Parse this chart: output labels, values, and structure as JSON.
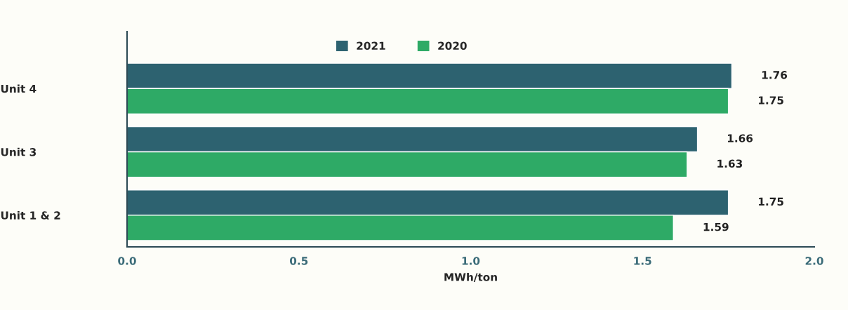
{
  "chart_data": {
    "type": "bar",
    "orientation": "horizontal",
    "categories": [
      "Unit 4",
      "Unit 3",
      "Unit 1 & 2"
    ],
    "series": [
      {
        "name": "2021",
        "color": "#2d6270",
        "values": [
          1.76,
          1.66,
          1.75
        ]
      },
      {
        "name": "2020",
        "color": "#2eaa66",
        "values": [
          1.75,
          1.63,
          1.59
        ]
      }
    ],
    "xlabel": "MWh/ton",
    "xlim": [
      0,
      2.0
    ],
    "xticks": [
      {
        "value": 0,
        "label": "0.0"
      },
      {
        "value": 0.5,
        "label": "0.5"
      },
      {
        "value": 1.0,
        "label": "1.0"
      },
      {
        "value": 1.5,
        "label": "1.5"
      },
      {
        "value": 2.0,
        "label": "2.0"
      }
    ],
    "data_labels": true,
    "legend": "top",
    "grid": false
  }
}
